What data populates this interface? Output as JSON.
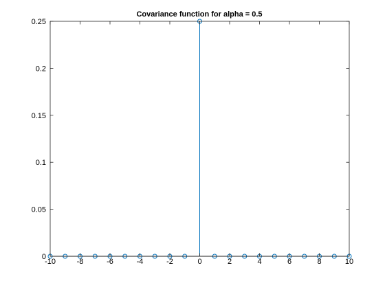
{
  "chart_data": {
    "type": "stem",
    "title": "Covariance function for alpha = 0.5",
    "xlabel": "",
    "ylabel": "",
    "xlim": [
      -10,
      10
    ],
    "ylim": [
      0,
      0.25
    ],
    "x_ticks": [
      -10,
      -8,
      -6,
      -4,
      -2,
      0,
      2,
      4,
      6,
      8,
      10
    ],
    "x_tick_labels": [
      "-10",
      "-8",
      "-6",
      "-4",
      "-2",
      "0",
      "2",
      "4",
      "6",
      "8",
      "10"
    ],
    "y_ticks": [
      0,
      0.05,
      0.1,
      0.15,
      0.2,
      0.25
    ],
    "y_tick_labels": [
      "0",
      "0.05",
      "0.1",
      "0.15",
      "0.2",
      "0.25"
    ],
    "grid": false,
    "series": [
      {
        "color": "#0072BD",
        "x": [
          -10,
          -9,
          -8,
          -7,
          -6,
          -5,
          -4,
          -3,
          -2,
          -1,
          0,
          1,
          2,
          3,
          4,
          5,
          6,
          7,
          8,
          9,
          10
        ],
        "y": [
          0,
          0,
          0,
          0,
          0,
          0,
          0,
          0,
          0,
          0,
          0.25,
          0,
          0,
          0,
          0,
          0,
          0,
          0,
          0,
          0,
          0
        ]
      }
    ]
  }
}
